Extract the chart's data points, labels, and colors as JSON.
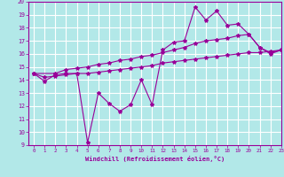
{
  "xlabel": "Windchill (Refroidissement éolien,°C)",
  "bg_color": "#b2e8e8",
  "grid_color": "#ffffff",
  "line_color": "#990099",
  "xlim": [
    -0.5,
    23
  ],
  "ylim": [
    9,
    20
  ],
  "xticks": [
    0,
    1,
    2,
    3,
    4,
    5,
    6,
    7,
    8,
    9,
    10,
    11,
    12,
    13,
    14,
    15,
    16,
    17,
    18,
    19,
    20,
    21,
    22,
    23
  ],
  "yticks": [
    9,
    10,
    11,
    12,
    13,
    14,
    15,
    16,
    17,
    18,
    19,
    20
  ],
  "line1_x": [
    0,
    1,
    2,
    3,
    4,
    5,
    6,
    7,
    8,
    9,
    10,
    11,
    12,
    13,
    14,
    15,
    16,
    17,
    18,
    19,
    20,
    21,
    22,
    23
  ],
  "line1_y": [
    14.5,
    13.9,
    14.4,
    14.5,
    14.5,
    9.2,
    13.0,
    12.2,
    11.6,
    12.1,
    14.0,
    12.1,
    16.3,
    16.9,
    17.0,
    19.6,
    18.6,
    19.3,
    18.2,
    18.3,
    17.5,
    16.5,
    16.0,
    16.3
  ],
  "line2_x": [
    0,
    2,
    3,
    4,
    5,
    6,
    7,
    8,
    9,
    10,
    11,
    12,
    13,
    14,
    15,
    16,
    17,
    18,
    19,
    20,
    21,
    22,
    23
  ],
  "line2_y": [
    14.5,
    14.5,
    14.8,
    14.9,
    15.0,
    15.2,
    15.3,
    15.5,
    15.6,
    15.8,
    15.9,
    16.1,
    16.3,
    16.5,
    16.8,
    17.0,
    17.1,
    17.2,
    17.4,
    17.5,
    16.5,
    16.1,
    16.3
  ],
  "line3_x": [
    0,
    1,
    2,
    3,
    4,
    5,
    6,
    7,
    8,
    9,
    10,
    11,
    12,
    13,
    14,
    15,
    16,
    17,
    18,
    19,
    20,
    21,
    22,
    23
  ],
  "line3_y": [
    14.5,
    14.2,
    14.3,
    14.4,
    14.5,
    14.5,
    14.6,
    14.7,
    14.8,
    14.9,
    15.0,
    15.1,
    15.3,
    15.4,
    15.5,
    15.6,
    15.7,
    15.8,
    15.9,
    16.0,
    16.1,
    16.1,
    16.2,
    16.3
  ]
}
